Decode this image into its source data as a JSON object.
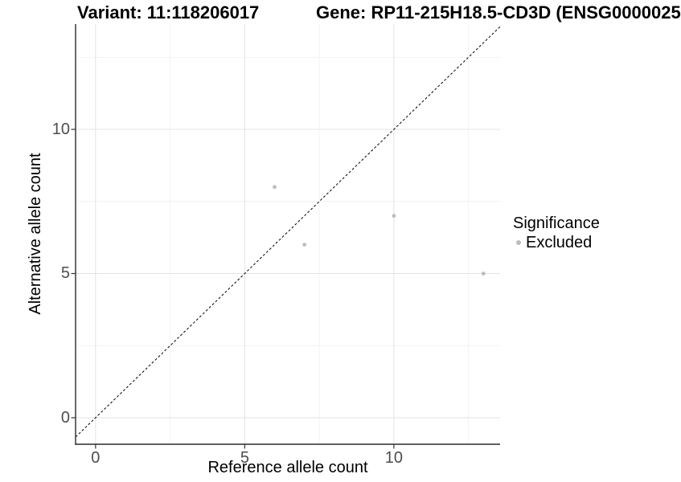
{
  "chart_data": {
    "type": "scatter",
    "titles": {
      "left": "Variant: 11:118206017",
      "right": "Gene: RP11-215H18.5-CD3D (ENSG0000025"
    },
    "xlabel": "Reference allele count",
    "ylabel": "Alternative allele count",
    "xlim": [
      -0.67,
      13.56
    ],
    "ylim": [
      -0.92,
      13.65
    ],
    "x_ticks": {
      "major": [
        0,
        5,
        10
      ],
      "minor": [
        2.5,
        7.5,
        12.5
      ]
    },
    "y_ticks": {
      "major": [
        0,
        5,
        10
      ],
      "minor": [
        2.5,
        7.5,
        12.5
      ]
    },
    "grid": "on",
    "identity_line": {
      "equation": "y = x",
      "style": "dashed",
      "color": "#000000"
    },
    "series": [
      {
        "name": "Excluded",
        "color": "#bdbdbd",
        "points": [
          [
            6,
            8
          ],
          [
            7,
            6
          ],
          [
            10,
            7
          ],
          [
            13,
            5
          ]
        ]
      }
    ],
    "legend": {
      "title": "Significance",
      "position": "right",
      "entries": [
        {
          "label": "Excluded",
          "color": "#bdbdbd"
        }
      ]
    },
    "colors": {
      "grid_major": "#e3e3e3",
      "grid_minor": "#f1f1f1",
      "axis_line": "#2b2b2b",
      "tick_mark": "#333333",
      "tick_label": "#4d4d4d",
      "point": "#bdbdbd",
      "background": "#ffffff"
    }
  }
}
